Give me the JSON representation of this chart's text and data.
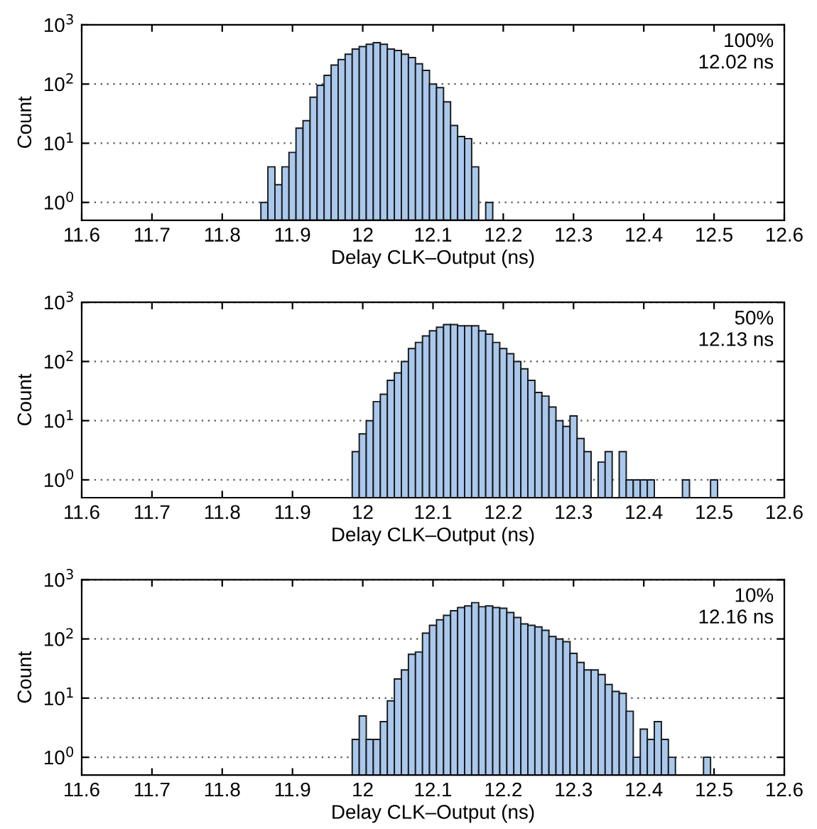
{
  "chart_data": [
    {
      "type": "histogram",
      "xlabel": "Delay CLK–Output (ns)",
      "ylabel": "Count",
      "annotations": [
        "100%",
        "12.02 ns"
      ],
      "color": "#a9c8ec",
      "log": true,
      "grid": "y",
      "xlim": [
        11.6,
        12.6
      ],
      "ylim": [
        0.5,
        1000
      ],
      "xticks": [
        11.6,
        11.7,
        11.8,
        11.9,
        12,
        12.1,
        12.2,
        12.3,
        12.4,
        12.5,
        12.6
      ],
      "yticks": [
        {
          "value": 1,
          "label": "10$^{0}$"
        },
        {
          "value": 10,
          "label": "10$^{1}$"
        },
        {
          "value": 100,
          "label": "10$^{2}$"
        },
        {
          "value": 1000,
          "label": "10$^{3}$"
        }
      ],
      "bins": [
        11.855,
        11.865,
        11.875,
        11.885,
        11.895,
        11.905,
        11.915,
        11.925,
        11.935,
        11.945,
        11.955,
        11.965,
        11.975,
        11.985,
        11.995,
        12.005,
        12.015,
        12.025,
        12.035,
        12.045,
        12.055,
        12.065,
        12.075,
        12.085,
        12.095,
        12.105,
        12.115,
        12.125,
        12.135,
        12.145,
        12.155,
        12.165,
        12.175,
        12.185
      ],
      "values": [
        1,
        4,
        2,
        4,
        7,
        18,
        24,
        60,
        95,
        140,
        210,
        260,
        320,
        390,
        430,
        470,
        500,
        470,
        390,
        370,
        320,
        280,
        220,
        170,
        100,
        87,
        50,
        20,
        13,
        12,
        4,
        null,
        1
      ]
    },
    {
      "type": "histogram",
      "xlabel": "Delay CLK–Output (ns)",
      "ylabel": "Count",
      "annotations": [
        "50%",
        "12.13 ns"
      ],
      "color": "#a9c8ec",
      "log": true,
      "grid": "y",
      "xlim": [
        11.6,
        12.6
      ],
      "ylim": [
        0.5,
        1000
      ],
      "xticks": [
        11.6,
        11.7,
        11.8,
        11.9,
        12,
        12.1,
        12.2,
        12.3,
        12.4,
        12.5,
        12.6
      ],
      "yticks": [
        {
          "value": 1,
          "label": "10$^{0}$"
        },
        {
          "value": 10,
          "label": "10$^{1}$"
        },
        {
          "value": 100,
          "label": "10$^{2}$"
        },
        {
          "value": 1000,
          "label": "10$^{3}$"
        }
      ],
      "bins": [
        11.985,
        11.995,
        12.005,
        12.015,
        12.025,
        12.035,
        12.045,
        12.055,
        12.065,
        12.075,
        12.085,
        12.095,
        12.105,
        12.115,
        12.125,
        12.135,
        12.145,
        12.155,
        12.165,
        12.175,
        12.185,
        12.195,
        12.205,
        12.215,
        12.225,
        12.235,
        12.245,
        12.255,
        12.265,
        12.275,
        12.285,
        12.295,
        12.305,
        12.315,
        12.325,
        12.335,
        12.345,
        12.355,
        12.365,
        12.375,
        12.385,
        12.395,
        12.405,
        12.415,
        12.425,
        12.435,
        12.445,
        12.455,
        12.465,
        12.475,
        12.485,
        12.495,
        12.505
      ],
      "values": [
        3,
        6,
        10,
        21,
        28,
        48,
        64,
        100,
        165,
        210,
        270,
        330,
        380,
        420,
        420,
        400,
        400,
        400,
        330,
        290,
        210,
        165,
        135,
        100,
        75,
        48,
        30,
        26,
        17,
        10,
        8,
        12,
        5,
        3,
        null,
        2,
        3,
        null,
        3,
        1,
        1,
        1,
        1,
        null,
        null,
        null,
        null,
        1,
        null,
        null,
        null,
        1
      ]
    },
    {
      "type": "histogram",
      "xlabel": "Delay CLK–Output (ns)",
      "ylabel": "Count",
      "annotations": [
        "10%",
        "12.16 ns"
      ],
      "color": "#a9c8ec",
      "log": true,
      "grid": "y",
      "xlim": [
        11.6,
        12.6
      ],
      "ylim": [
        0.5,
        1000
      ],
      "xticks": [
        11.6,
        11.7,
        11.8,
        11.9,
        12,
        12.1,
        12.2,
        12.3,
        12.4,
        12.5,
        12.6
      ],
      "yticks": [
        {
          "value": 1,
          "label": "10$^{0}$"
        },
        {
          "value": 10,
          "label": "10$^{1}$"
        },
        {
          "value": 100,
          "label": "10$^{2}$"
        },
        {
          "value": 1000,
          "label": "10$^{3}$"
        }
      ],
      "bins": [
        11.985,
        11.995,
        12.005,
        12.015,
        12.025,
        12.035,
        12.045,
        12.055,
        12.065,
        12.075,
        12.085,
        12.095,
        12.105,
        12.115,
        12.125,
        12.135,
        12.145,
        12.155,
        12.165,
        12.175,
        12.185,
        12.195,
        12.205,
        12.215,
        12.225,
        12.235,
        12.245,
        12.255,
        12.265,
        12.275,
        12.285,
        12.295,
        12.305,
        12.315,
        12.325,
        12.335,
        12.345,
        12.355,
        12.365,
        12.375,
        12.385,
        12.395,
        12.405,
        12.415,
        12.425,
        12.435,
        12.445,
        12.455,
        12.465,
        12.475,
        12.485,
        12.495
      ],
      "values": [
        2,
        5,
        2,
        2,
        4,
        9,
        21,
        30,
        55,
        60,
        125,
        170,
        210,
        250,
        300,
        340,
        360,
        410,
        350,
        360,
        340,
        330,
        280,
        230,
        180,
        170,
        160,
        140,
        110,
        100,
        90,
        57,
        40,
        30,
        30,
        25,
        17,
        13,
        12,
        6,
        1,
        3,
        2,
        4,
        2,
        1,
        null,
        null,
        null,
        null,
        1
      ]
    }
  ]
}
